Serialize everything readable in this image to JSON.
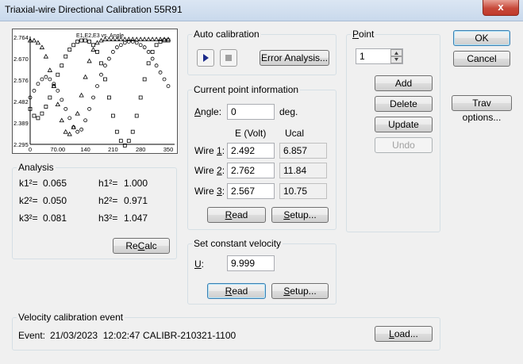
{
  "window": {
    "title": "Triaxial-wire Directional Calibration 55R91",
    "close_glyph": "x"
  },
  "chart_data": {
    "type": "scatter",
    "title": "E1,E2,E3 vs. Angle",
    "x_ticks": [
      "0",
      "70.00",
      "140",
      "210",
      "280",
      "350"
    ],
    "y_ticks": [
      "2.764",
      "2.670",
      "2.576",
      "2.482",
      "2.389",
      "2.295"
    ],
    "xlim": [
      0,
      350
    ],
    "ylim": [
      2.295,
      2.764
    ],
    "series": [
      {
        "marker": "circle",
        "x": [
          0,
          10,
          20,
          30,
          40,
          50,
          60,
          70,
          80,
          90,
          100,
          110,
          120,
          130,
          140,
          150,
          160,
          170,
          180,
          190,
          200,
          210,
          220,
          230,
          240,
          250,
          260,
          270,
          280,
          290,
          300,
          310,
          320,
          330,
          340,
          350
        ],
        "y": [
          2.5,
          2.53,
          2.56,
          2.58,
          2.59,
          2.58,
          2.56,
          2.53,
          2.49,
          2.45,
          2.41,
          2.37,
          2.35,
          2.36,
          2.4,
          2.45,
          2.5,
          2.55,
          2.6,
          2.64,
          2.67,
          2.7,
          2.72,
          2.73,
          2.74,
          2.745,
          2.745,
          2.74,
          2.73,
          2.72,
          2.7,
          2.67,
          2.64,
          2.61,
          2.58,
          2.55
        ]
      },
      {
        "marker": "square",
        "x": [
          0,
          10,
          20,
          30,
          40,
          50,
          60,
          70,
          80,
          90,
          100,
          110,
          120,
          130,
          140,
          150,
          160,
          170,
          180,
          190,
          200,
          210,
          220,
          230,
          240,
          250,
          260,
          270,
          280,
          290,
          300,
          310,
          320,
          330,
          340,
          350
        ],
        "y": [
          2.45,
          2.42,
          2.41,
          2.43,
          2.46,
          2.5,
          2.55,
          2.6,
          2.64,
          2.68,
          2.71,
          2.73,
          2.745,
          2.75,
          2.75,
          2.745,
          2.73,
          2.7,
          2.65,
          2.58,
          2.5,
          2.42,
          2.35,
          2.31,
          2.29,
          2.31,
          2.35,
          2.42,
          2.5,
          2.58,
          2.65,
          2.7,
          2.73,
          2.745,
          2.75,
          2.75
        ]
      },
      {
        "marker": "triangle",
        "x": [
          0,
          10,
          20,
          30,
          40,
          50,
          60,
          70,
          80,
          90,
          100,
          110,
          120,
          130,
          140,
          150,
          160,
          170,
          180,
          190,
          200,
          210,
          220,
          230,
          240,
          250,
          260,
          270,
          280,
          290,
          300,
          310,
          320,
          330,
          340,
          350
        ],
        "y": [
          2.75,
          2.75,
          2.74,
          2.72,
          2.68,
          2.62,
          2.55,
          2.47,
          2.4,
          2.35,
          2.34,
          2.37,
          2.43,
          2.51,
          2.59,
          2.66,
          2.71,
          2.74,
          2.75,
          2.755,
          2.755,
          2.755,
          2.755,
          2.755,
          2.755,
          2.755,
          2.755,
          2.755,
          2.755,
          2.755,
          2.755,
          2.755,
          2.755,
          2.755,
          2.755,
          2.755
        ]
      }
    ]
  },
  "analysis": {
    "label": "Analysis",
    "rows": [
      {
        "k": "k1²=",
        "kv": "0.065",
        "h": "h1²=",
        "hv": "1.000"
      },
      {
        "k": "k2²=",
        "kv": "0.050",
        "h": "h2²=",
        "hv": "0.971"
      },
      {
        "k": "k3²=",
        "kv": "0.081",
        "h": "h3²=",
        "hv": "1.047"
      }
    ],
    "recalc": {
      "pre": "Re",
      "u": "C",
      "post": "alc"
    }
  },
  "auto_calibration": {
    "label": "Auto calibration",
    "error_analysis": "Error Analysis..."
  },
  "current_point": {
    "label": "Current point information",
    "angle": {
      "pre": "",
      "u": "A",
      "post": "ngle:",
      "value": "0",
      "unit": "deg."
    },
    "col_e": "E (Volt)",
    "col_u": "Ucal",
    "wires": [
      {
        "pre": "Wire ",
        "u": "1",
        "post": ":",
        "e": "2.492",
        "ucal": "6.857"
      },
      {
        "pre": "Wire ",
        "u": "2",
        "post": ":",
        "e": "2.762",
        "ucal": "11.84"
      },
      {
        "pre": "Wire ",
        "u": "3",
        "post": ":",
        "e": "2.567",
        "ucal": "10.75"
      }
    ],
    "read": {
      "pre": "",
      "u": "R",
      "post": "ead"
    },
    "setup": {
      "pre": "",
      "u": "S",
      "post": "etup..."
    }
  },
  "constant_velocity": {
    "label": "Set constant velocity",
    "u_label": {
      "pre": "",
      "u": "U",
      "post": ":"
    },
    "value": "9.999",
    "read": {
      "pre": "",
      "u": "R",
      "post": "ead"
    },
    "setup": {
      "pre": "",
      "u": "S",
      "post": "etup..."
    }
  },
  "point": {
    "label": {
      "pre": "",
      "u": "P",
      "post": "oint"
    },
    "value": "1",
    "add": "Add",
    "delete": "Delete",
    "update": "Update",
    "undo": "Undo"
  },
  "side": {
    "ok": "OK",
    "cancel": "Cancel",
    "trav": "Trav options..."
  },
  "velocity_event": {
    "label": "Velocity calibration event",
    "event_label": "Event:",
    "datetime": "21/03/2023  12:02:47",
    "id": "CALIBR-210321-1100",
    "load": {
      "pre": "",
      "u": "L",
      "post": "oad..."
    }
  }
}
